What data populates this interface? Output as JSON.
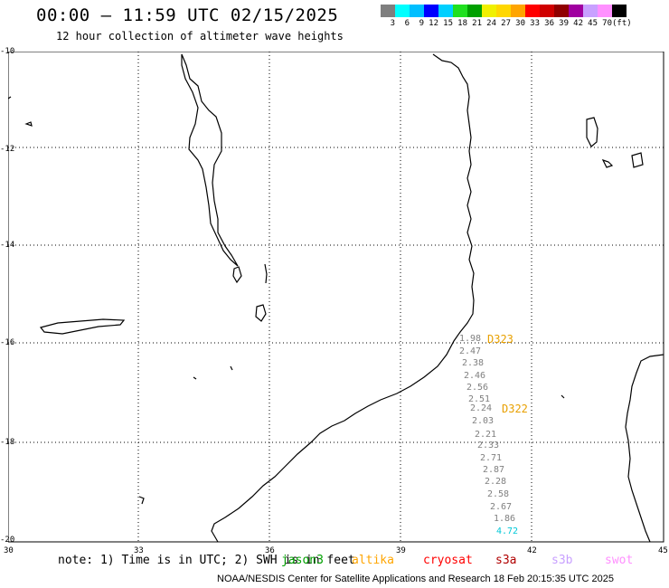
{
  "header": {
    "title": "00:00 – 11:59 UTC 02/15/2025",
    "subtitle": "12 hour collection of altimeter wave heights"
  },
  "colorbar": {
    "colors": [
      "#7f7f7f",
      "#00ffff",
      "#00bfff",
      "#0000ff",
      "#00d0ff",
      "#20e020",
      "#00a000",
      "#f0f000",
      "#ffd700",
      "#ffa500",
      "#ff0000",
      "#d00000",
      "#900000",
      "#a000a0",
      "#c8a0ff",
      "#ff90ff",
      "#000000"
    ],
    "labels": [
      "3",
      "6",
      "9",
      "12",
      "15",
      "18",
      "21",
      "24",
      "27",
      "30",
      "33",
      "36",
      "39",
      "42",
      "45",
      "70",
      "(ft)"
    ]
  },
  "map": {
    "lat_labels": [
      "-10",
      "-12",
      "-14",
      "-16",
      "-18",
      "-20"
    ],
    "lon_labels": [
      "30",
      "33",
      "36",
      "39",
      "42",
      "45"
    ]
  },
  "observations": [
    {
      "value": "1.98",
      "color": "#808080"
    },
    {
      "value": "2.47",
      "color": "#808080"
    },
    {
      "value": "2.38",
      "color": "#808080"
    },
    {
      "value": "2.46",
      "color": "#808080"
    },
    {
      "value": "2.56",
      "color": "#808080"
    },
    {
      "value": "2.51",
      "color": "#808080"
    },
    {
      "value": "2.24",
      "color": "#808080"
    },
    {
      "value": "2.03",
      "color": "#808080"
    },
    {
      "value": "2.21",
      "color": "#808080"
    },
    {
      "value": "2.33",
      "color": "#808080"
    },
    {
      "value": "2.71",
      "color": "#808080"
    },
    {
      "value": "2.87",
      "color": "#808080"
    },
    {
      "value": "2.28",
      "color": "#808080"
    },
    {
      "value": "2.58",
      "color": "#808080"
    },
    {
      "value": "2.67",
      "color": "#808080"
    },
    {
      "value": "1.86",
      "color": "#808080"
    },
    {
      "value": "4.72",
      "color": "#00c8d8"
    }
  ],
  "passes": [
    "D323",
    "D322"
  ],
  "note": "note: 1) Time is in UTC; 2) SWH is in feet",
  "legend": [
    {
      "label": "jason3",
      "color": "#00a000"
    },
    {
      "label": "altika",
      "color": "#ffa500"
    },
    {
      "label": "cryosat",
      "color": "#ff0000"
    },
    {
      "label": "s3a",
      "color": "#b00000"
    },
    {
      "label": "s3b",
      "color": "#c8a0ff"
    },
    {
      "label": "swot",
      "color": "#ff90ff"
    }
  ],
  "footer": "NOAA/NESDIS Center for Satellite Applications and Research    18 Feb 20:15:35 UTC 2025"
}
